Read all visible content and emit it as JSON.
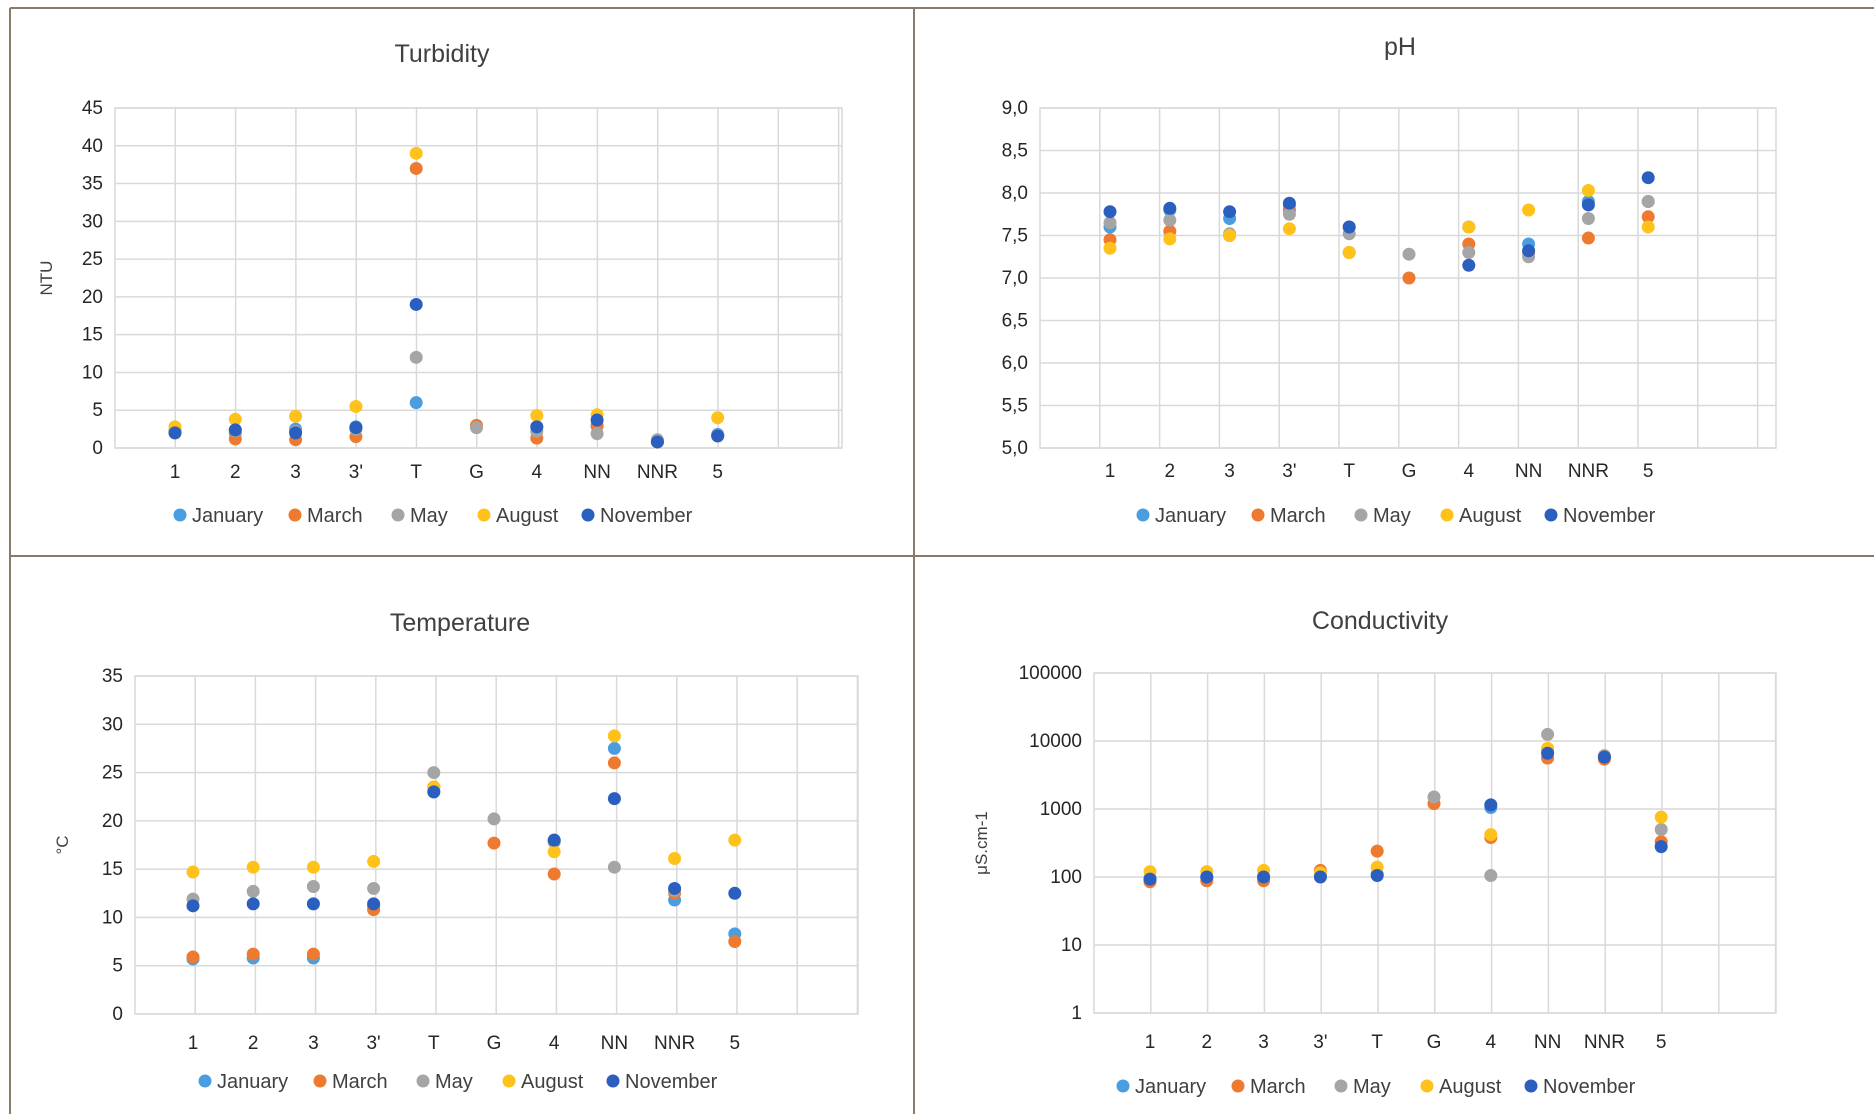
{
  "colors": {
    "January": "#4a9ee0",
    "March": "#ee7a30",
    "May": "#a5a5a5",
    "August": "#ffc21a",
    "November": "#2a5fbf"
  },
  "chart_data": [
    {
      "type": "scatter",
      "title": "Turbidity",
      "xlabel": "",
      "ylabel": "NTU",
      "ylim": [
        0,
        45
      ],
      "yticks": [
        "0",
        "5",
        "10",
        "15",
        "20",
        "25",
        "30",
        "35",
        "40",
        "45"
      ],
      "ytick_values": [
        0,
        5,
        10,
        15,
        20,
        25,
        30,
        35,
        40,
        45
      ],
      "log": false,
      "categories": [
        "1",
        "2",
        "3",
        "3'",
        "T",
        "G",
        "4",
        "NN",
        "NNR",
        "5"
      ],
      "grid": true,
      "legend_position": "bottom",
      "series": [
        {
          "name": "January",
          "values": [
            2.2,
            2.0,
            2.5,
            2.8,
            6.0,
            null,
            2.8,
            2.9,
            0.9,
            1.8
          ]
        },
        {
          "name": "March",
          "values": [
            2.0,
            1.2,
            1.1,
            1.5,
            37.0,
            3.0,
            1.3,
            3.0,
            0.8,
            1.6
          ]
        },
        {
          "name": "May",
          "values": [
            2.2,
            2.3,
            2.2,
            2.5,
            12.0,
            2.7,
            2.2,
            1.9,
            1.1,
            1.7
          ]
        },
        {
          "name": "August",
          "values": [
            2.8,
            3.8,
            4.2,
            5.5,
            39.0,
            null,
            4.3,
            4.4,
            null,
            4.0
          ]
        },
        {
          "name": "November",
          "values": [
            2.0,
            2.4,
            2.0,
            2.7,
            19.0,
            null,
            2.8,
            3.7,
            0.8,
            1.6
          ]
        }
      ]
    },
    {
      "type": "scatter",
      "title": "pH",
      "xlabel": "",
      "ylabel": "",
      "ylim": [
        5.0,
        9.0
      ],
      "yticks": [
        "5,0",
        "5,5",
        "6,0",
        "6,5",
        "7,0",
        "7,5",
        "8,0",
        "8,5",
        "9,0"
      ],
      "ytick_values": [
        5.0,
        5.5,
        6.0,
        6.5,
        7.0,
        7.5,
        8.0,
        8.5,
        9.0
      ],
      "log": false,
      "categories": [
        "1",
        "2",
        "3",
        "3'",
        "T",
        "G",
        "4",
        "NN",
        "NNR",
        "5"
      ],
      "grid": true,
      "legend_position": "bottom",
      "series": [
        {
          "name": "January",
          "values": [
            7.6,
            7.8,
            7.7,
            7.8,
            7.6,
            null,
            7.6,
            7.4,
            7.9,
            7.9
          ]
        },
        {
          "name": "March",
          "values": [
            7.45,
            7.55,
            7.5,
            7.85,
            7.3,
            7.0,
            7.4,
            7.3,
            7.47,
            7.72
          ]
        },
        {
          "name": "May",
          "values": [
            7.65,
            7.68,
            7.52,
            7.75,
            7.52,
            7.28,
            7.3,
            7.25,
            7.7,
            7.9
          ]
        },
        {
          "name": "August",
          "values": [
            7.35,
            7.46,
            7.5,
            7.58,
            7.3,
            null,
            7.6,
            7.8,
            8.03,
            7.6
          ]
        },
        {
          "name": "November",
          "values": [
            7.78,
            7.82,
            7.78,
            7.88,
            7.6,
            null,
            7.15,
            7.32,
            7.86,
            8.18
          ]
        }
      ]
    },
    {
      "type": "scatter",
      "title": "Temperature",
      "xlabel": "",
      "ylabel": "°C",
      "ylim": [
        0,
        35
      ],
      "yticks": [
        "0",
        "5",
        "10",
        "15",
        "20",
        "25",
        "30",
        "35"
      ],
      "ytick_values": [
        0,
        5,
        10,
        15,
        20,
        25,
        30,
        35
      ],
      "log": false,
      "categories": [
        "1",
        "2",
        "3",
        "3'",
        "T",
        "G",
        "4",
        "NN",
        "NNR",
        "5"
      ],
      "grid": true,
      "legend_position": "bottom",
      "series": [
        {
          "name": "January",
          "values": [
            5.7,
            5.8,
            5.8,
            11.2,
            23.0,
            null,
            18.0,
            27.5,
            11.8,
            8.3
          ]
        },
        {
          "name": "March",
          "values": [
            5.9,
            6.2,
            6.2,
            10.8,
            23.5,
            17.7,
            14.5,
            26.0,
            12.5,
            7.5
          ]
        },
        {
          "name": "May",
          "values": [
            11.9,
            12.7,
            13.2,
            13.0,
            25.0,
            20.2,
            17.8,
            15.2,
            12.8,
            null
          ]
        },
        {
          "name": "August",
          "values": [
            14.7,
            15.2,
            15.2,
            15.8,
            23.5,
            null,
            16.8,
            28.8,
            16.1,
            18.0
          ]
        },
        {
          "name": "November",
          "values": [
            11.2,
            11.4,
            11.4,
            11.4,
            23.0,
            null,
            18.0,
            22.3,
            13.0,
            12.5
          ]
        }
      ]
    },
    {
      "type": "scatter",
      "title": "Conductivity",
      "xlabel": "",
      "ylabel": "μS.cm-1",
      "ylim": [
        1,
        100000
      ],
      "yticks": [
        "1",
        "10",
        "100",
        "1000",
        "10000",
        "100000"
      ],
      "ytick_values": [
        1,
        10,
        100,
        1000,
        10000,
        100000
      ],
      "log": true,
      "categories": [
        "1",
        "2",
        "3",
        "3'",
        "T",
        "G",
        "4",
        "NN",
        "NNR",
        "5"
      ],
      "grid": true,
      "legend_position": "bottom",
      "series": [
        {
          "name": "January",
          "values": [
            95,
            100,
            100,
            105,
            110,
            null,
            1050,
            7500,
            5900,
            null
          ]
        },
        {
          "name": "March",
          "values": [
            85,
            88,
            88,
            125,
            240,
            1200,
            380,
            5600,
            5400,
            330
          ]
        },
        {
          "name": "May",
          "values": [
            null,
            null,
            null,
            null,
            null,
            1500,
            105,
            12500,
            6100,
            500
          ]
        },
        {
          "name": "August",
          "values": [
            120,
            120,
            125,
            115,
            140,
            null,
            420,
            7800,
            null,
            760
          ]
        },
        {
          "name": "November",
          "values": [
            93,
            100,
            100,
            100,
            105,
            null,
            1150,
            6600,
            5800,
            280
          ]
        }
      ]
    }
  ]
}
